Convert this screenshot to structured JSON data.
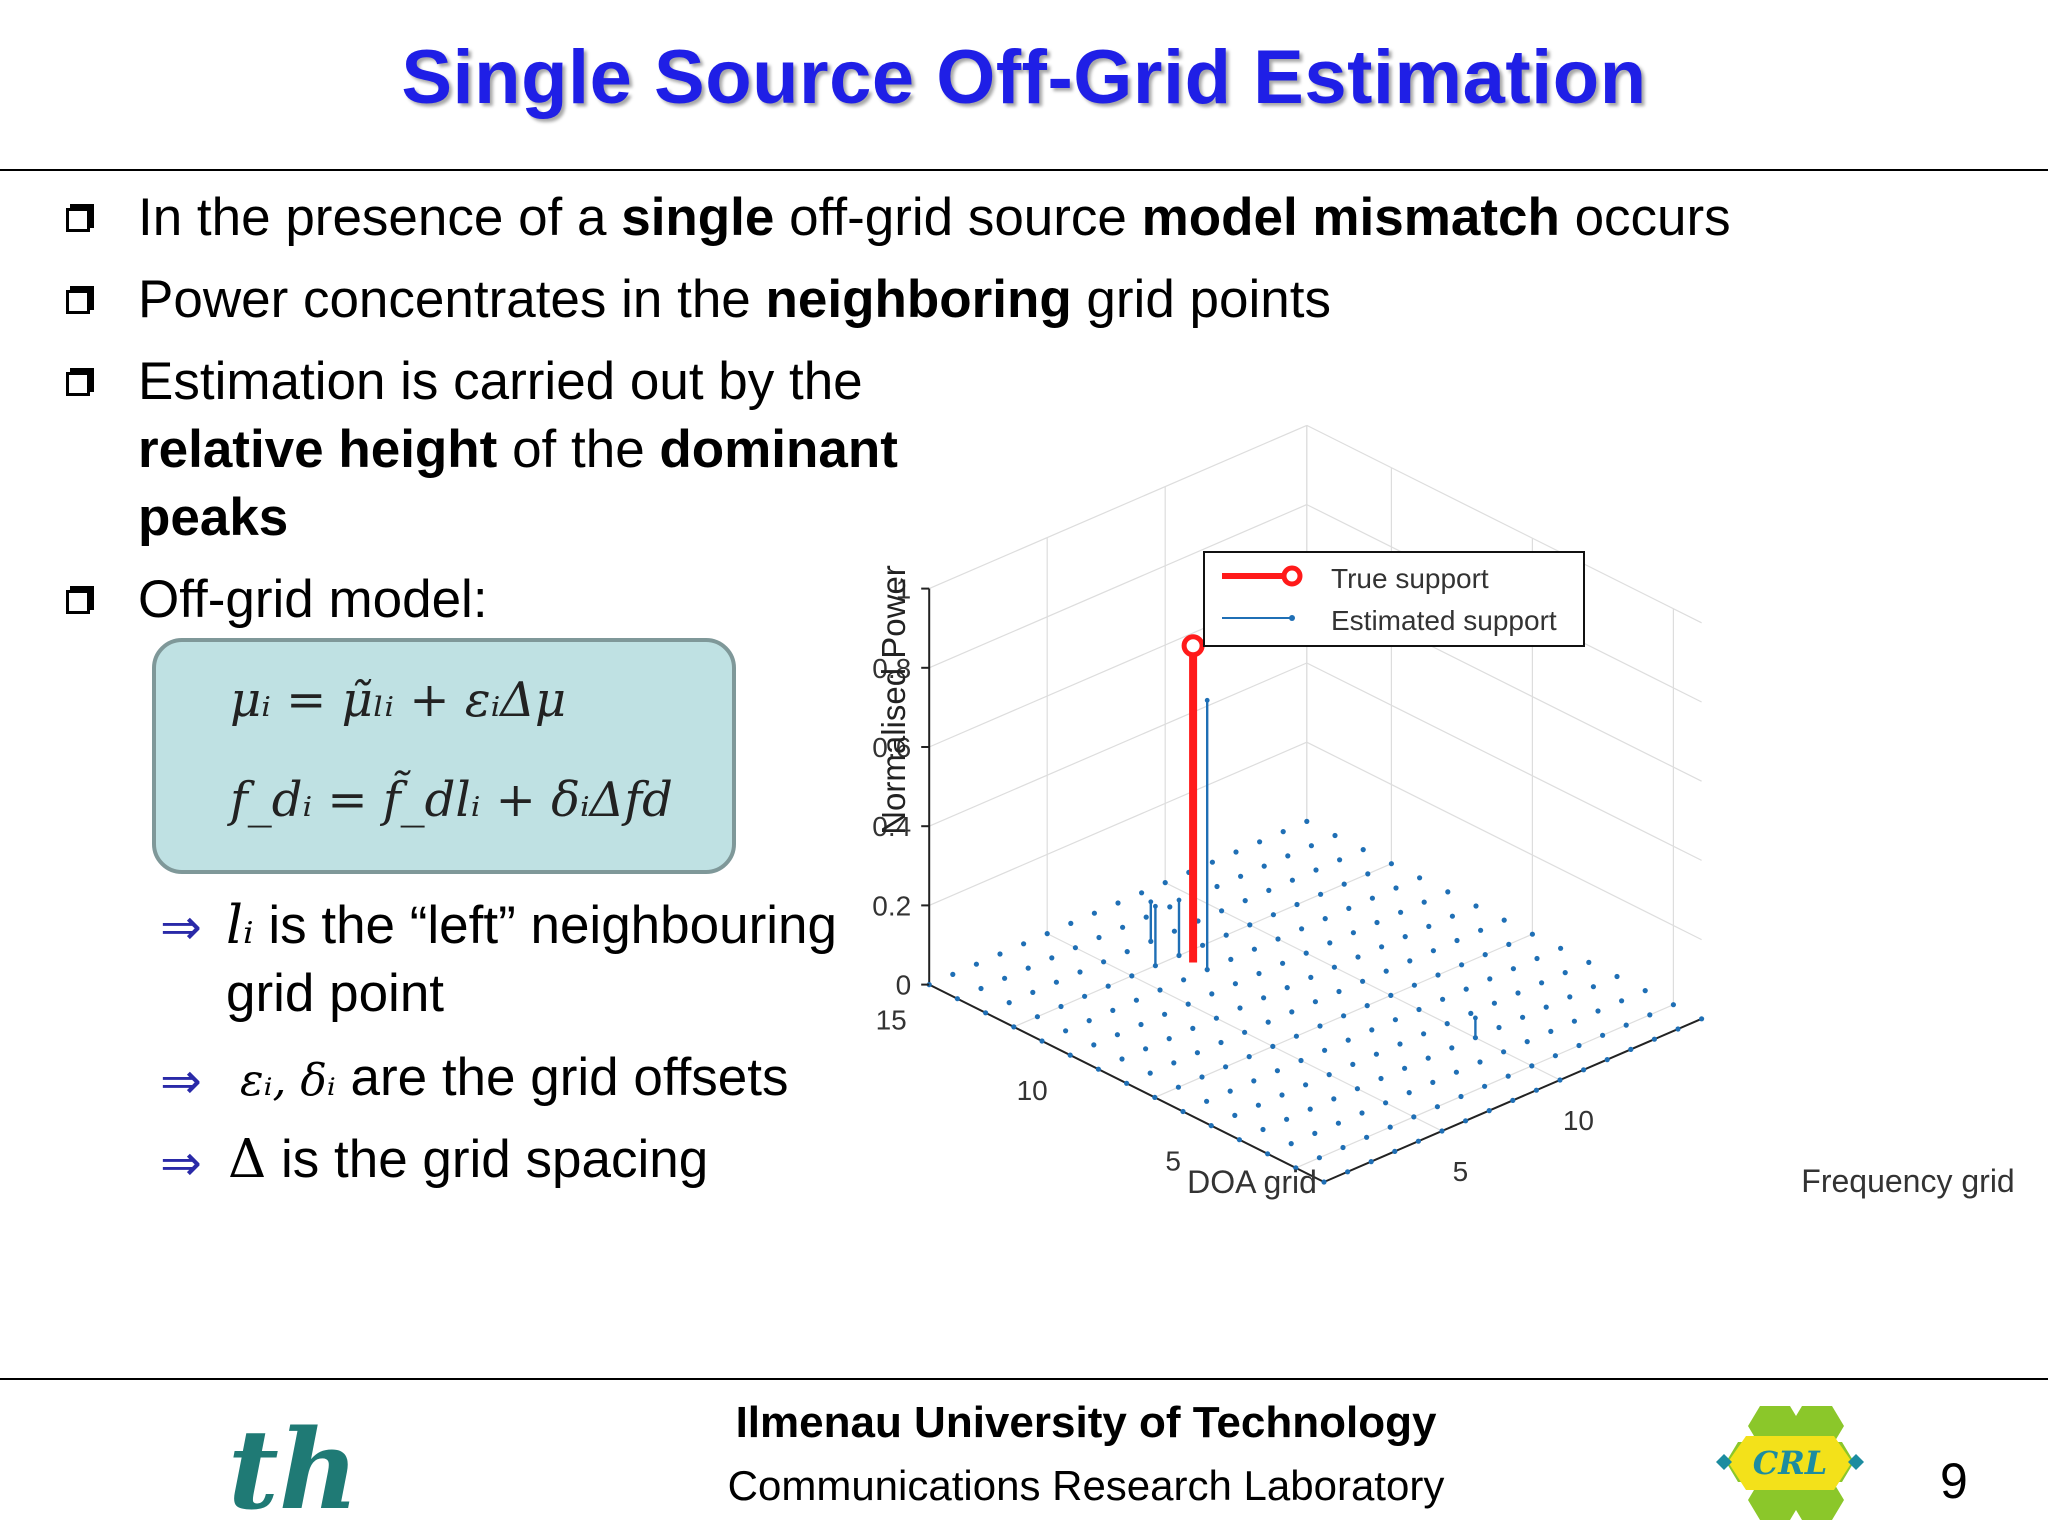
{
  "slide": {
    "title": "Single Source Off-Grid Estimation",
    "page_number": "9"
  },
  "bullets": {
    "b1": {
      "t1": "In the presence of a ",
      "t2": "single",
      "t3": " off-grid source ",
      "t4": "model mismatch",
      "t5": " occurs"
    },
    "b2": {
      "t1": "Power concentrates in the ",
      "t2": "neighboring",
      "t3": " grid points"
    },
    "b3": {
      "line1": "Estimation is carried out by the",
      "t2": "relative height",
      "t3": " of the ",
      "t4": "dominant",
      "t5": "peaks"
    },
    "b4": {
      "t1": "Off-grid model:"
    }
  },
  "equations": {
    "eq1": "μᵢ = μ̃ₗᵢ + εᵢΔμ",
    "eq2": "f_dᵢ = f̃_dlᵢ + δᵢΔfd"
  },
  "subbullets": {
    "s1": {
      "math": "lᵢ",
      "text1": " is the “left” neighbouring",
      "text2": "grid point"
    },
    "s2": {
      "math": "εᵢ, δᵢ",
      "text": " are the grid offsets"
    },
    "s3": {
      "math": "Δ",
      "text": " is the grid spacing"
    },
    "arrow": "⇒"
  },
  "footer": {
    "university": "Ilmenau University of Technology",
    "lab": "Communications Research Laboratory",
    "left_logo": "th",
    "right_logo": "CRL"
  },
  "chart_data": {
    "type": "3d-stem",
    "zlabel": "Normalised Power",
    "xlabel": "DOA grid",
    "ylabel": "Frequency grid",
    "z_ticks": [
      "0",
      "0.2",
      "0.4",
      "0.6",
      "0.8",
      "1"
    ],
    "doa_ticks": [
      "5",
      "10",
      "15"
    ],
    "freq_ticks": [
      "5",
      "10"
    ],
    "zlim": [
      0,
      1
    ],
    "legend": [
      "True support",
      "Estimated support"
    ],
    "legend_position": "top",
    "colors": {
      "true": "#ff1a1a",
      "estimated": "#1f6fb5"
    },
    "true_support": [
      {
        "doa": 10.5,
        "freq": 7,
        "power": 0.8
      }
    ],
    "estimated_support": [
      {
        "doa": 10,
        "freq": 7,
        "power": 0.68
      },
      {
        "doa": 11,
        "freq": 7,
        "power": 0.14
      },
      {
        "doa": 12,
        "freq": 7,
        "power": 0.1
      },
      {
        "doa": 11,
        "freq": 6,
        "power": 0.15
      },
      {
        "doa": 3,
        "freq": 10,
        "power": 0.05
      }
    ]
  }
}
